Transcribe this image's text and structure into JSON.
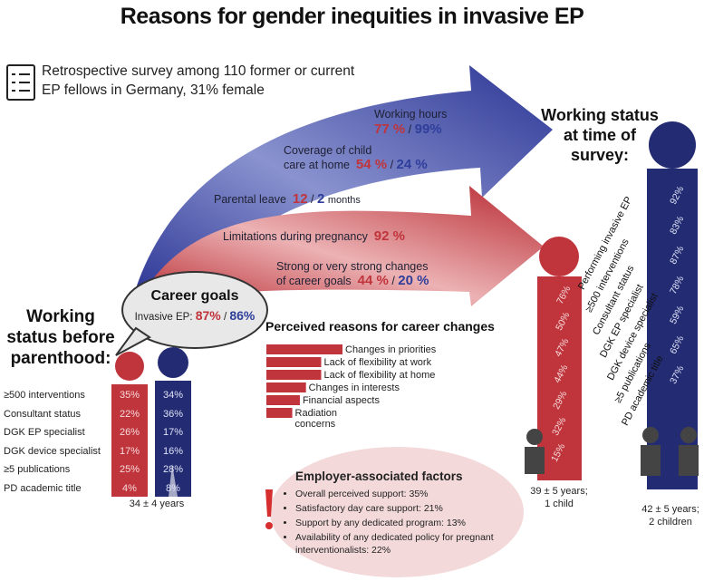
{
  "title": "Reasons for gender inequities in invasive EP",
  "survey": {
    "icon": "clipboard-checklist-icon",
    "text": "Retrospective survey among 110 former or current EP fellows in Germany, 31% female"
  },
  "colors": {
    "female": "#c0343c",
    "male": "#232b73",
    "female_light": "#e2a5a8",
    "male_light": "#8790cc"
  },
  "arrows": {
    "working_hours": {
      "label": "Working hours",
      "female": "77 %",
      "male": "99%"
    },
    "childcare": {
      "label1": "Coverage of child",
      "label2": "care at home",
      "female": "54 %",
      "male": "24 %"
    },
    "parental_leave": {
      "label": "Parental leave",
      "female": "12",
      "male": "2",
      "unit": "months"
    },
    "pregnancy": {
      "label": "Limitations during pregnancy",
      "female": "92 %"
    },
    "career_change": {
      "label1": "Strong or very strong changes",
      "label2": "of career goals",
      "female": "44 %",
      "male": "20 %"
    }
  },
  "career_goals": {
    "title": "Career goals",
    "label": "Invasive EP:",
    "female": "87%",
    "male": "86%"
  },
  "before": {
    "title": "Working status before parenthood:",
    "rows": [
      {
        "label": "≥500 interventions",
        "female": "35%",
        "male": "34%"
      },
      {
        "label": "Consultant status",
        "female": "22%",
        "male": "36%"
      },
      {
        "label": "DGK EP specialist",
        "female": "26%",
        "male": "17%"
      },
      {
        "label": "DGK device specialist",
        "female": "17%",
        "male": "16%"
      },
      {
        "label": "≥5 publications",
        "female": "25%",
        "male": "28%"
      },
      {
        "label": "PD academic title",
        "female": "4%",
        "male": "8%"
      }
    ],
    "age": "34 ± 4 years"
  },
  "reasons": {
    "title": "Perceived reasons for career changes",
    "items": [
      {
        "label": "Changes in priorities",
        "score": 5
      },
      {
        "label": "Lack of flexibility at work",
        "score": 3.6
      },
      {
        "label": "Lack of flexibility at home",
        "score": 3.6
      },
      {
        "label": "Changes in interests",
        "score": 2.6
      },
      {
        "label": "Financial aspects",
        "score": 2.2
      },
      {
        "label": "Radiation",
        "label2": "concerns",
        "score": 1.7
      }
    ]
  },
  "employer": {
    "title": "Employer-associated factors",
    "icon": "exclamation-icon",
    "items": [
      "Overall perceived support: 35%",
      "Satisfactory day care support: 21%",
      "Support by any dedicated program: 13%",
      "Availability of any dedicated policy for pregnant interventionalists: 22%"
    ]
  },
  "survey_status": {
    "title": "Working status at time of survey:",
    "labels": [
      "Performing invasive EP",
      "≥500 interventions",
      "Consultant status",
      "DGK EP specialist",
      "DGK device specialist",
      "≥5 publications",
      "PD academic title"
    ],
    "female": [
      "76%",
      "50%",
      "47%",
      "44%",
      "29%",
      "32%",
      "15%"
    ],
    "male": [
      "92%",
      "83%",
      "87%",
      "78%",
      "59%",
      "65%",
      "37%"
    ],
    "female_caption": [
      "39 ± 5 years;",
      "1 child"
    ],
    "male_caption": [
      "42 ± 5 years;",
      "2 children"
    ]
  }
}
